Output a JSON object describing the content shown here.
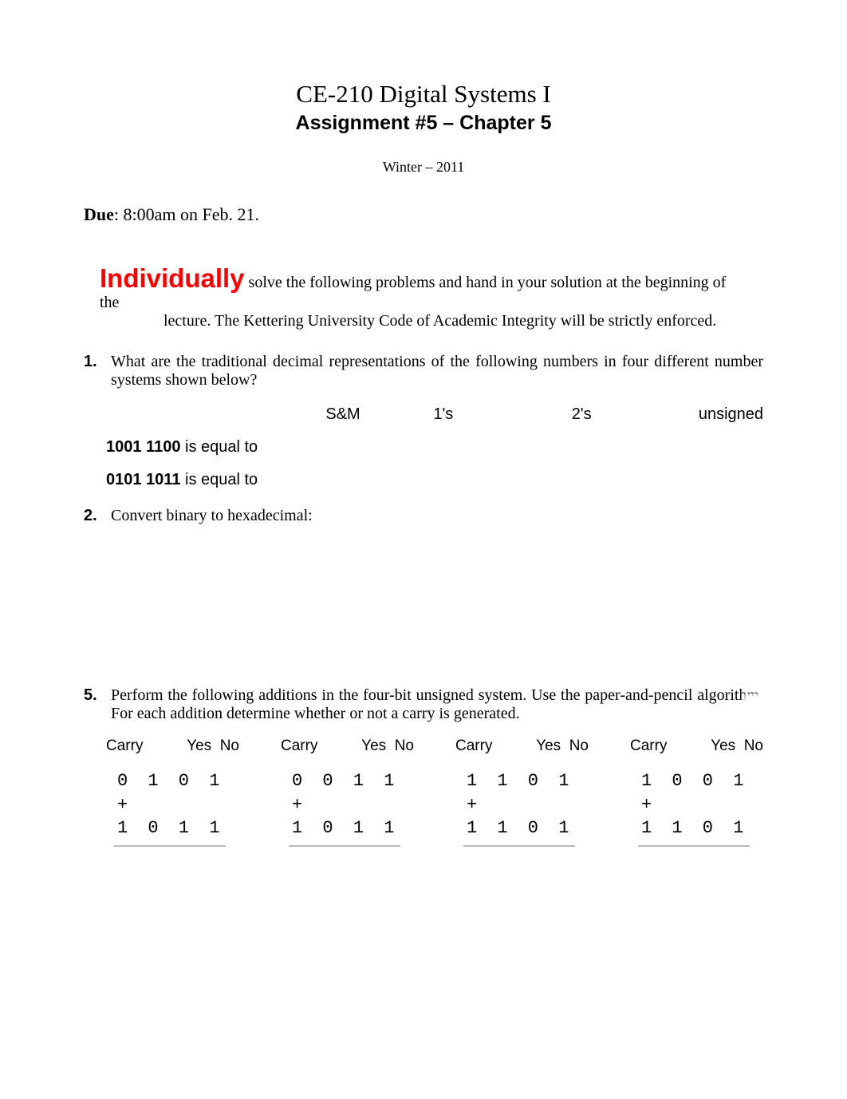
{
  "title": {
    "line1": "CE-210 Digital Systems I",
    "line2": "Assignment #5 – Chapter 5",
    "term": "Winter – 2011"
  },
  "due": {
    "label": "Due",
    "text": ": 8:00am on Feb. 21."
  },
  "individually": {
    "word": "Individually",
    "rest": " solve the following problems and hand in your solution at the beginning of the",
    "line2": "lecture. The Kettering University Code of Academic Integrity will be strictly enforced."
  },
  "q1": {
    "num": "1.",
    "text": "What are the traditional decimal representations of the following numbers in four different number systems shown below?",
    "headers": {
      "sm": "S&M",
      "ones": "1's",
      "twos": "2's",
      "unsigned": "unsigned"
    },
    "rowA": {
      "bits": "1001 1100",
      "suffix": " is equal to"
    },
    "rowB": {
      "bits": "0101 1011",
      "suffix": " is equal to"
    }
  },
  "q2": {
    "num": "2.",
    "text": "Convert binary to hexadecimal:"
  },
  "q5": {
    "num": "5.",
    "text": "Perform the following additions in the four-bit unsigned system. Use the paper-and-pencil algorithm. For each addition determine whether or not a carry is generated.",
    "carry_label": "Carry",
    "yes": "Yes",
    "no": "No",
    "problems": [
      {
        "a": "0 1 0 1",
        "plus": " +",
        "b": "1 0 1 1"
      },
      {
        "a": "0 0 1 1",
        "plus": " +",
        "b": "1 0 1 1"
      },
      {
        "a": "1 1 0 1",
        "plus": " +",
        "b": "1 1 0 1"
      },
      {
        "a": "1 0 0 1",
        "plus": " +",
        "b": "1 1 0 1"
      }
    ]
  },
  "colors": {
    "red": "#ff0000",
    "text": "#000000",
    "background": "#ffffff",
    "result_line": "#b9b9b9"
  },
  "typography": {
    "body_font": "Times New Roman",
    "mono_font": "Courier New",
    "sans_font": "Arial",
    "title1_size_pt": 24,
    "title2_size_pt": 19,
    "body_size_pt": 15,
    "individually_size_pt": 25
  }
}
